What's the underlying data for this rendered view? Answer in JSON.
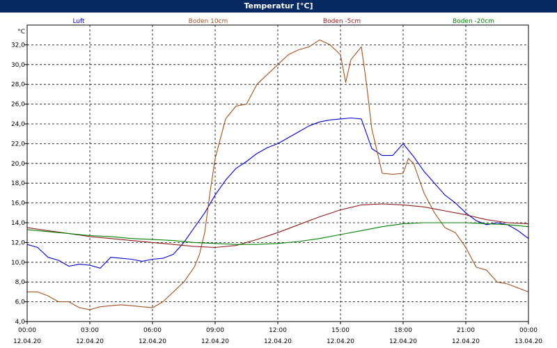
{
  "window": {
    "title": "Temperatur [°C]"
  },
  "chart_data": {
    "type": "line",
    "title": "Temperatur [°C]",
    "ylabel": "°C",
    "xlabel": "",
    "ylim": [
      4,
      34
    ],
    "xlim": [
      0,
      24
    ],
    "grid": true,
    "legend_position": "top",
    "yticks": [
      "4,0",
      "6,0",
      "8,0",
      "10,0",
      "12,0",
      "14,0",
      "16,0",
      "18,0",
      "20,0",
      "22,0",
      "24,0",
      "26,0",
      "28,0",
      "30,0",
      "32,0"
    ],
    "xticks": [
      {
        "time": "00:00",
        "date": "12.04.20"
      },
      {
        "time": "03:00",
        "date": "12.04.20"
      },
      {
        "time": "06:00",
        "date": "12.04.20"
      },
      {
        "time": "09:00",
        "date": "12.04.20"
      },
      {
        "time": "12:00",
        "date": "12.04.20"
      },
      {
        "time": "15:00",
        "date": "12.04.20"
      },
      {
        "time": "18:00",
        "date": "12.04.20"
      },
      {
        "time": "21:00",
        "date": "12.04.20"
      },
      {
        "time": "00:00",
        "date": "13.04.20"
      }
    ],
    "series": [
      {
        "name": "Luft",
        "color": "#0000cc",
        "x": [
          0,
          0.5,
          1,
          1.5,
          2,
          2.5,
          3,
          3.5,
          4,
          4.5,
          5,
          5.5,
          6,
          6.5,
          7,
          7.5,
          8,
          8.5,
          9,
          9.5,
          10,
          10.5,
          11,
          11.5,
          12,
          12.5,
          13,
          13.5,
          14,
          14.5,
          15,
          15.5,
          16,
          16.5,
          17,
          17.5,
          18,
          18.5,
          19,
          19.5,
          20,
          20.5,
          21,
          21.5,
          22,
          22.5,
          23,
          23.5,
          24
        ],
        "y": [
          11.8,
          11.5,
          10.5,
          10.2,
          9.6,
          9.8,
          9.7,
          9.4,
          10.5,
          10.4,
          10.3,
          10.1,
          10.3,
          10.4,
          10.8,
          12.0,
          13.5,
          15.0,
          16.8,
          18.3,
          19.5,
          20.2,
          21.0,
          21.6,
          22.0,
          22.6,
          23.2,
          23.8,
          24.2,
          24.4,
          24.5,
          24.6,
          24.5,
          21.5,
          20.8,
          20.8,
          22.0,
          20.7,
          19.2,
          18.0,
          16.8,
          16.0,
          15.0,
          14.2,
          13.8,
          14.0,
          13.8,
          13.2,
          12.4
        ]
      },
      {
        "name": "Boden 10cm",
        "color": "#a0521e",
        "x": [
          0,
          0.5,
          1,
          1.5,
          2,
          2.5,
          3,
          3.5,
          4,
          4.5,
          5,
          5.5,
          6,
          6.5,
          7,
          7.5,
          8,
          8.25,
          8.5,
          8.75,
          9,
          9.25,
          9.5,
          10,
          10.5,
          11,
          11.5,
          12,
          12.5,
          13,
          13.5,
          14,
          14.5,
          15,
          15.25,
          15.5,
          16,
          16.25,
          16.5,
          17,
          17.5,
          18,
          18.25,
          18.5,
          19,
          19.5,
          20,
          20.5,
          21,
          21.5,
          22,
          22.5,
          23,
          23.5,
          24
        ],
        "y": [
          7.0,
          7.0,
          6.6,
          6.0,
          6.0,
          5.4,
          5.2,
          5.5,
          5.6,
          5.7,
          5.6,
          5.5,
          5.4,
          6.0,
          7.0,
          8.0,
          9.5,
          10.8,
          13.0,
          17.0,
          20.5,
          22.5,
          24.5,
          25.8,
          26.0,
          28.0,
          29.0,
          30.0,
          31.0,
          31.5,
          31.8,
          32.5,
          32.0,
          31.0,
          28.2,
          30.5,
          31.8,
          28.0,
          23.5,
          19.0,
          18.9,
          19.0,
          20.5,
          20.0,
          17.0,
          15.0,
          13.5,
          13.0,
          11.5,
          9.5,
          9.2,
          8.0,
          7.8,
          7.4,
          7.0
        ]
      },
      {
        "name": "Boden -5cm",
        "color": "#8b1a1a",
        "x": [
          0,
          1,
          2,
          3,
          4,
          5,
          6,
          7,
          8,
          9,
          10,
          11,
          12,
          13,
          14,
          15,
          16,
          17,
          18,
          19,
          20,
          21,
          22,
          23,
          24
        ],
        "y": [
          13.5,
          13.2,
          12.9,
          12.6,
          12.4,
          12.2,
          12.0,
          11.8,
          11.6,
          11.5,
          11.7,
          12.3,
          13.0,
          13.8,
          14.6,
          15.3,
          15.8,
          15.9,
          15.8,
          15.6,
          15.2,
          14.8,
          14.3,
          14.0,
          13.9
        ]
      },
      {
        "name": "Boden -20cm",
        "color": "#008000",
        "x": [
          0,
          1,
          2,
          3,
          4,
          5,
          6,
          7,
          8,
          9,
          10,
          11,
          12,
          13,
          14,
          15,
          16,
          17,
          18,
          19,
          20,
          21,
          22,
          23,
          24
        ],
        "y": [
          13.3,
          13.1,
          12.9,
          12.7,
          12.6,
          12.4,
          12.3,
          12.2,
          12.0,
          11.9,
          11.8,
          11.8,
          11.9,
          12.1,
          12.4,
          12.8,
          13.2,
          13.6,
          13.9,
          14.0,
          14.0,
          14.0,
          13.9,
          13.8,
          13.6
        ]
      }
    ]
  }
}
